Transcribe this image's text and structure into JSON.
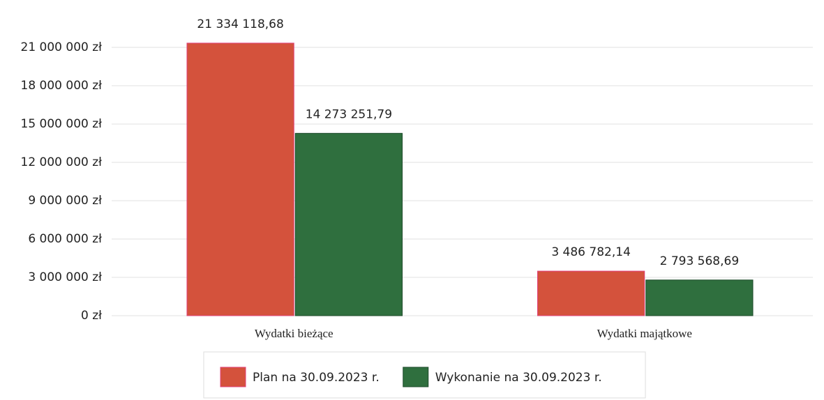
{
  "chart_data": {
    "type": "bar",
    "categories": [
      "Wydatki bieżące",
      "Wydatki majątkowe"
    ],
    "series": [
      {
        "name": "Plan na 30.09.2023 r.",
        "color": "#d4523c",
        "values": [
          21334118.68,
          3486782.14
        ],
        "value_labels": [
          "21 334 118,68",
          "3 486 782,14"
        ],
        "label_color": "#d8325e"
      },
      {
        "name": "Wykonanie na 30.09.2023 r.",
        "color": "#2f6f3e",
        "values": [
          14273251.79,
          2793568.69
        ],
        "value_labels": [
          "14 273 251,79",
          "2 793 568,69"
        ],
        "label_color": "#1f4f3a"
      }
    ],
    "ylim": [
      0,
      24000000
    ],
    "yticks": [
      {
        "value": 0,
        "label": "0 zł"
      },
      {
        "value": 3000000,
        "label": "3 000 000 zł"
      },
      {
        "value": 6000000,
        "label": "6 000 000 zł"
      },
      {
        "value": 9000000,
        "label": "9 000 000 zł"
      },
      {
        "value": 12000000,
        "label": "12 000 000 zł"
      },
      {
        "value": 15000000,
        "label": "15 000 000 zł"
      },
      {
        "value": 18000000,
        "label": "18 000 000 zł"
      },
      {
        "value": 21000000,
        "label": "21 000 000 zł"
      }
    ],
    "grid": true,
    "legend": "bottom"
  }
}
